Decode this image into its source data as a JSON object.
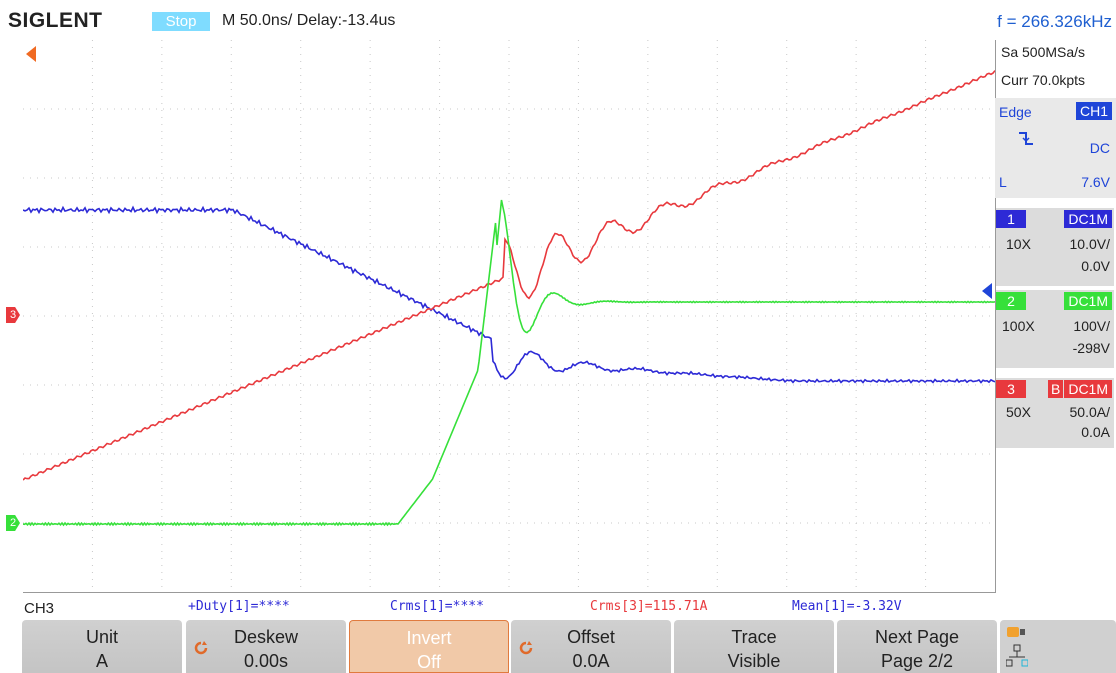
{
  "header": {
    "brand": "SIGLENT",
    "run_state": "Stop",
    "timebase": "M 50.0ns/  Delay:-13.4us",
    "frequency": "f = 266.326kHz"
  },
  "acquisition": {
    "sample_rate": "Sa 500MSa/s",
    "memory": "Curr 70.0kpts"
  },
  "trigger": {
    "type": "Edge",
    "source": "CH1",
    "coupling": "DC",
    "level_label": "L",
    "level": "7.6V",
    "slope_icon": "falling-edge-icon"
  },
  "channels": [
    {
      "num": "1",
      "coupling": "DC1M",
      "probe": "10X",
      "scale": "10.0V/",
      "offset": "0.0V",
      "color": "#2d2ad6",
      "bw": ""
    },
    {
      "num": "2",
      "coupling": "DC1M",
      "probe": "100X",
      "scale": "100V/",
      "offset": "-298V",
      "color": "#36e03a",
      "bw": ""
    },
    {
      "num": "3",
      "coupling": "DC1M",
      "probe": "50X",
      "scale": "50.0A/",
      "offset": "0.0A",
      "color": "#e8393d",
      "bw": "B"
    }
  ],
  "active_channel": "CH3",
  "measurements": [
    {
      "text": "+Duty[1]=****",
      "color": "#2d2ad6"
    },
    {
      "text": "Crms[1]=****",
      "color": "#2d2ad6"
    },
    {
      "text": "Crms[3]=115.71A",
      "color": "#e8393d"
    },
    {
      "text": "Mean[1]=-3.32V",
      "color": "#2d2ad6"
    }
  ],
  "softkeys": [
    {
      "line1": "Unit",
      "line2": "A",
      "knob": false,
      "selected": false
    },
    {
      "line1": "Deskew",
      "line2": "0.00s",
      "knob": true,
      "selected": false
    },
    {
      "line1": "Invert",
      "line2": "Off",
      "knob": false,
      "selected": true
    },
    {
      "line1": "Offset",
      "line2": "0.0A",
      "knob": true,
      "selected": false
    },
    {
      "line1": "Trace",
      "line2": "Visible",
      "knob": false,
      "selected": false
    },
    {
      "line1": "Next Page",
      "line2": "Page 2/2",
      "knob": false,
      "selected": false
    }
  ],
  "markers": {
    "ch3": "3",
    "ch2": "2"
  },
  "colors": {
    "ch1": "#2d2ad6",
    "ch2": "#36e03a",
    "ch3": "#e8393d",
    "trigger_marker": "#f06a22",
    "accent": "#1f5fd0"
  },
  "icons": {
    "network": "network-icon",
    "usb": "usb-icon",
    "knob": "adjust-knob-icon"
  }
}
